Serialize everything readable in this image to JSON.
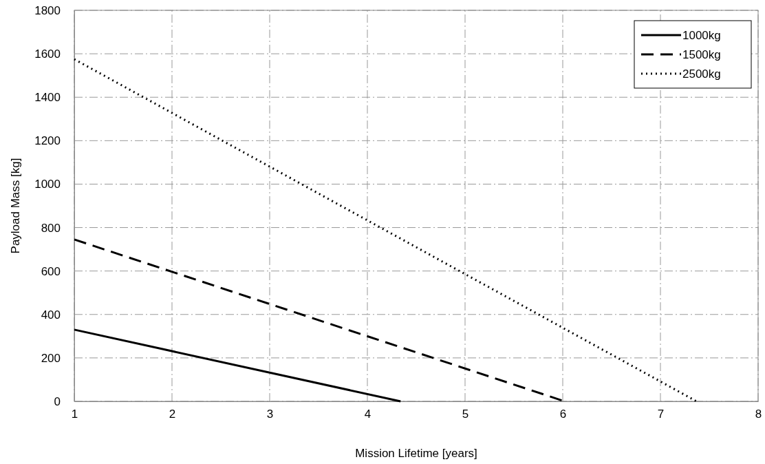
{
  "chart_data": {
    "type": "line",
    "xlabel": "Mission Lifetime [years]",
    "ylabel": "Payload Mass [kg]",
    "xlim": [
      1,
      8
    ],
    "xticks": [
      1,
      2,
      3,
      4,
      5,
      6,
      7,
      8
    ],
    "ylim": [
      0,
      1800
    ],
    "yticks": [
      0,
      200,
      400,
      600,
      800,
      1000,
      1200,
      1400,
      1600,
      1800
    ],
    "grid": true,
    "legend": "top right",
    "marker": "none",
    "series": [
      {
        "name": "1000kg",
        "color": "#000000",
        "line_style": "solid",
        "x": [
          1,
          4.34
        ],
        "values": [
          330,
          0
        ]
      },
      {
        "name": "1500kg",
        "color": "#000000",
        "line_style": "dashed",
        "x": [
          1,
          6.02
        ],
        "values": [
          745,
          0
        ]
      },
      {
        "name": "2500kg",
        "color": "#000000",
        "line_style": "dotted",
        "x": [
          1,
          7.37
        ],
        "values": [
          1575,
          0
        ]
      }
    ]
  }
}
